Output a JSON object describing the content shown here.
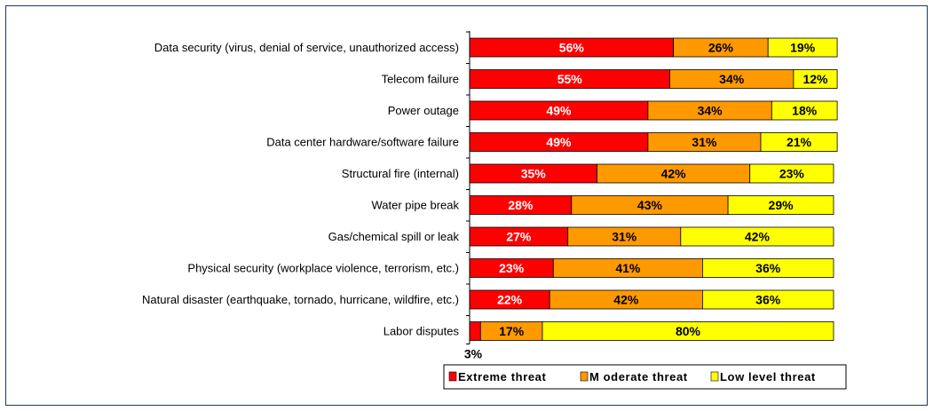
{
  "chart_data": {
    "type": "bar",
    "orientation": "horizontal",
    "stacked": true,
    "percent_stacked": true,
    "title": "",
    "xlabel": "",
    "ylabel": "",
    "xlim": [
      0,
      100
    ],
    "grid": false,
    "legend_position": "bottom",
    "categories": [
      "Data security (virus, denial of service, unauthorized access)",
      "Telecom failure",
      "Power outage",
      "Data center hardware/software failure",
      "Structural fire (internal)",
      "Water pipe break",
      "Gas/chemical spill or leak",
      "Physical security (workplace violence, terrorism, etc.)",
      "Natural disaster (earthquake, tornado, hurricane, wildfire, etc.)",
      "Labor disputes"
    ],
    "series": [
      {
        "name": "Extreme threat",
        "color": "#ff0000",
        "label_color": "#ffffff",
        "values": [
          56,
          55,
          49,
          49,
          35,
          28,
          27,
          23,
          22,
          3
        ],
        "labels": [
          "56%",
          "55%",
          "49%",
          "49%",
          "35%",
          "28%",
          "27%",
          "23%",
          "22%",
          "3%"
        ]
      },
      {
        "name": "Moderate threat",
        "color": "#ff9900",
        "label_color": "#000000",
        "values": [
          26,
          34,
          34,
          31,
          42,
          43,
          31,
          41,
          42,
          17
        ],
        "labels": [
          "26%",
          "34%",
          "34%",
          "31%",
          "42%",
          "43%",
          "31%",
          "41%",
          "42%",
          "17%"
        ]
      },
      {
        "name": "Low level threat",
        "color": "#ffff00",
        "label_color": "#000000",
        "values": [
          19,
          12,
          18,
          21,
          23,
          29,
          42,
          36,
          36,
          80
        ],
        "labels": [
          "19%",
          "12%",
          "18%",
          "21%",
          "23%",
          "29%",
          "42%",
          "36%",
          "36%",
          "80%"
        ]
      }
    ],
    "legend": [
      "Extreme threat",
      "M oderate threat",
      "Low level threat"
    ]
  }
}
